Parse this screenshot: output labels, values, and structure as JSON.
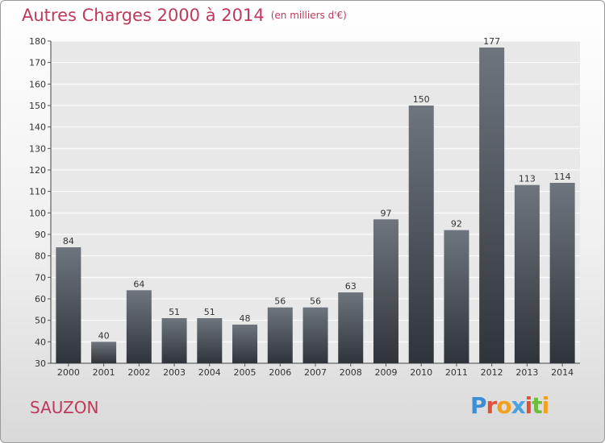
{
  "header": {
    "title": "Autres Charges 2000 à 2014",
    "subtitle": "(en milliers d'€)"
  },
  "footer": {
    "town": "SAUZON",
    "logo": "Proxiti",
    "logo_colors": [
      "#3b8ed6",
      "#e2503a",
      "#f2a01f",
      "#4aa3df",
      "#e2503a",
      "#6cbf3b",
      "#f2a01f"
    ]
  },
  "chart_data": {
    "type": "bar",
    "title": "Autres Charges 2000 à 2014",
    "subtitle": "(en milliers d'€)",
    "categories": [
      "2000",
      "2001",
      "2002",
      "2003",
      "2004",
      "2005",
      "2006",
      "2007",
      "2008",
      "2009",
      "2010",
      "2011",
      "2012",
      "2013",
      "2014"
    ],
    "values": [
      84,
      40,
      64,
      51,
      51,
      48,
      56,
      56,
      63,
      97,
      150,
      92,
      177,
      113,
      114
    ],
    "ylim": [
      30,
      180
    ],
    "yticks": [
      30,
      40,
      50,
      60,
      70,
      80,
      90,
      100,
      110,
      120,
      130,
      140,
      150,
      160,
      170,
      180
    ],
    "grid": true,
    "bar_color_top": "#6e757c",
    "bar_color_bottom": "#2f343a"
  }
}
